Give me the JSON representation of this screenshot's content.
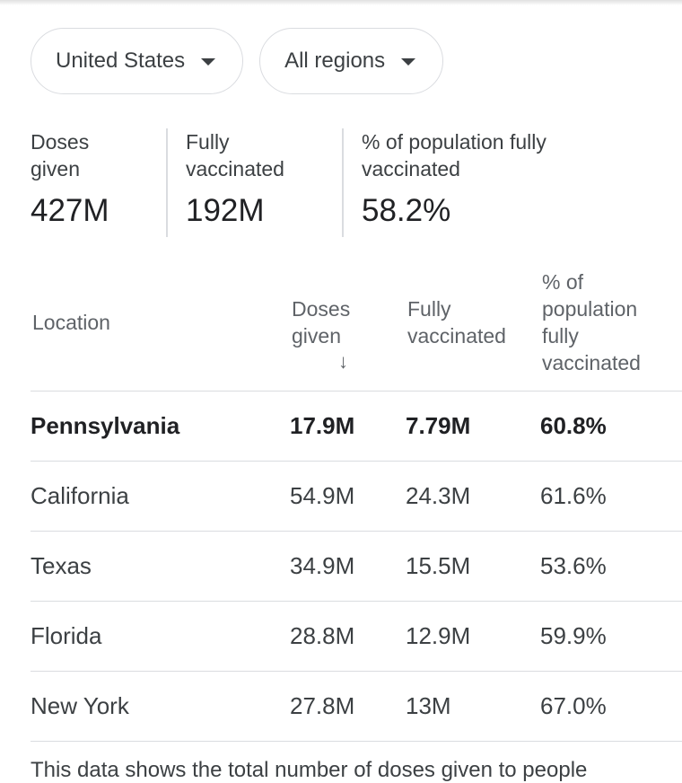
{
  "filters": {
    "country": "United States",
    "region": "All regions"
  },
  "stats": [
    {
      "label": "Doses given",
      "value": "427M"
    },
    {
      "label": "Fully vaccinated",
      "value": "192M"
    },
    {
      "label": "% of population fully vaccinated",
      "value": "58.2%"
    }
  ],
  "table": {
    "headers": {
      "location": "Location",
      "doses": "Doses given",
      "sort_arrow": "↓",
      "fully": "Fully vaccinated",
      "percent": "% of population fully vaccinated"
    },
    "rows": [
      {
        "location": "Pennsylvania",
        "doses": "17.9M",
        "fully": "7.79M",
        "percent": "60.8%"
      },
      {
        "location": "California",
        "doses": "54.9M",
        "fully": "24.3M",
        "percent": "61.6%"
      },
      {
        "location": "Texas",
        "doses": "34.9M",
        "fully": "15.5M",
        "percent": "53.6%"
      },
      {
        "location": "Florida",
        "doses": "28.8M",
        "fully": "12.9M",
        "percent": "59.9%"
      },
      {
        "location": "New York",
        "doses": "27.8M",
        "fully": "13M",
        "percent": "67.0%"
      }
    ]
  },
  "footnote": "This data shows the total number of doses given to people"
}
